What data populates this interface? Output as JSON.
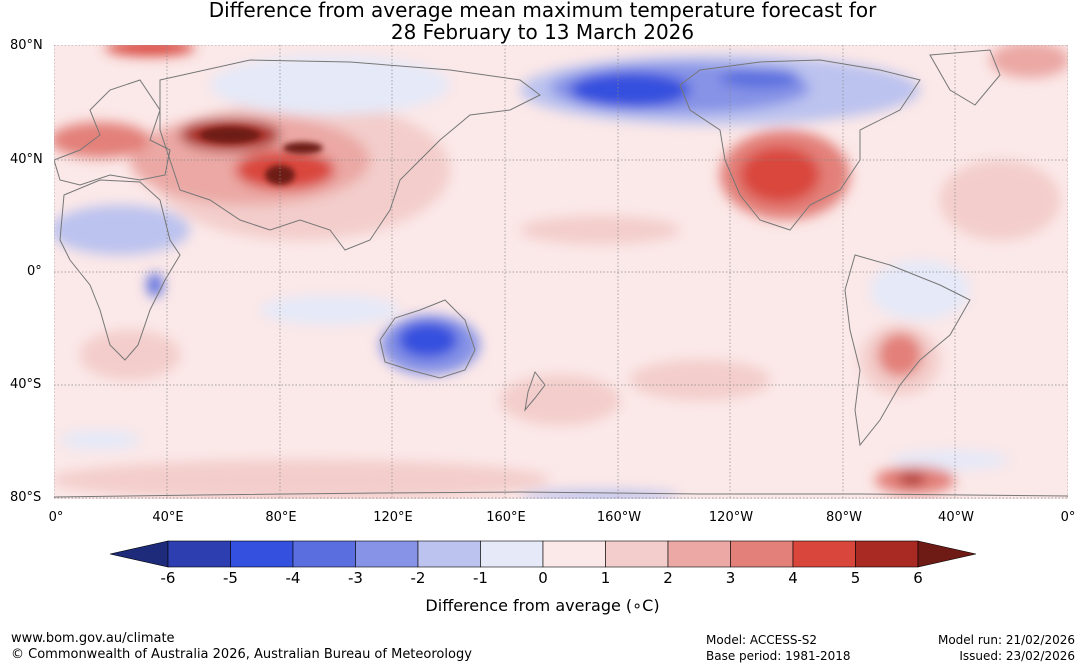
{
  "title": {
    "line1": "Difference from average mean maximum temperature forecast for",
    "line2": "28 February to 13 March 2026"
  },
  "map": {
    "lat_labels": [
      "80°N",
      "40°N",
      "0°",
      "40°S",
      "80°S"
    ],
    "lon_labels": [
      "0°",
      "40°E",
      "80°E",
      "120°E",
      "160°E",
      "160°W",
      "120°W",
      "80°W",
      "40°W",
      "0°"
    ],
    "colors": {
      "land_outline": "#777777",
      "grid": "#888888"
    }
  },
  "colorbar": {
    "ticks": [
      "-6",
      "-5",
      "-4",
      "-3",
      "-2",
      "-1",
      "0",
      "1",
      "2",
      "3",
      "4",
      "5",
      "6"
    ],
    "label": "Difference from average (∘C)",
    "colors": [
      "#1e2b7a",
      "#2d3fb0",
      "#3450de",
      "#5a6edf",
      "#8693e6",
      "#bcc3ef",
      "#e5e9f8",
      "#fbe8e8",
      "#f3cdcb",
      "#eba8a4",
      "#e38079",
      "#d9463c",
      "#a82a23",
      "#6e1a15"
    ]
  },
  "footer": {
    "url": "www.bom.gov.au/climate",
    "copyright": "© Commonwealth of Australia 2026, Australian Bureau of Meteorology",
    "model": "Model: ACCESS-S2",
    "base_period": "Base period: 1981-2018",
    "model_run": "Model run: 21/02/2026",
    "issued": "Issued: 23/02/2026"
  }
}
